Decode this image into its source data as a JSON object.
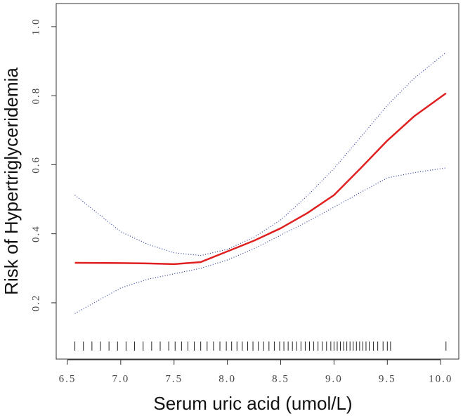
{
  "chart_data": {
    "type": "line",
    "xlabel": "Serum uric acid (umol/L)",
    "ylabel": "Risk of Hypertriglyceridemia",
    "x": [
      6.57,
      7.0,
      7.25,
      7.5,
      7.75,
      8.0,
      8.25,
      8.5,
      8.75,
      9.0,
      9.25,
      9.5,
      9.75,
      10.05
    ],
    "series": [
      {
        "color": "#e02020",
        "style": "solid",
        "values": [
          0.316,
          0.315,
          0.314,
          0.312,
          0.318,
          0.349,
          0.38,
          0.416,
          0.46,
          0.512,
          0.59,
          0.67,
          0.74,
          0.807
        ]
      },
      {
        "color": "#3040a0",
        "style": "dotted",
        "values": [
          0.512,
          0.406,
          0.37,
          0.345,
          0.337,
          0.355,
          0.39,
          0.44,
          0.51,
          0.589,
          0.68,
          0.772,
          0.85,
          0.925
        ]
      },
      {
        "color": "#3040a0",
        "style": "dotted",
        "values": [
          0.169,
          0.243,
          0.268,
          0.284,
          0.3,
          0.324,
          0.357,
          0.396,
          0.435,
          0.477,
          0.52,
          0.562,
          0.577,
          0.591
        ]
      }
    ],
    "rug": [
      6.57,
      6.65,
      6.73,
      6.81,
      6.89,
      6.97,
      7.05,
      7.13,
      7.21,
      7.29,
      7.37,
      7.45,
      7.51,
      7.57,
      7.63,
      7.69,
      7.75,
      7.81,
      7.87,
      7.93,
      7.99,
      8.04,
      8.09,
      8.14,
      8.19,
      8.24,
      8.29,
      8.34,
      8.39,
      8.44,
      8.49,
      8.53,
      8.57,
      8.61,
      8.65,
      8.69,
      8.73,
      8.77,
      8.81,
      8.85,
      8.89,
      8.93,
      8.97,
      9.0,
      9.03,
      9.06,
      9.09,
      9.12,
      9.15,
      9.18,
      9.21,
      9.24,
      9.27,
      9.3,
      9.33,
      9.37,
      9.41,
      9.46,
      9.5,
      9.53,
      10.05
    ],
    "xlim": [
      6.395,
      10.17
    ],
    "ylim": [
      0.037,
      1.067
    ],
    "xticks": [
      6.5,
      {
        "value": 7,
        "label": "7.0"
      },
      7.5,
      {
        "value": 8,
        "label": "8.0"
      },
      8.5,
      {
        "value": 9,
        "label": "9.0"
      },
      9.5,
      {
        "value": 10,
        "label": "10.0"
      }
    ],
    "yticks": [
      0.2,
      0.4,
      0.6,
      0.8,
      {
        "value": 1,
        "label": "1.0"
      }
    ]
  }
}
